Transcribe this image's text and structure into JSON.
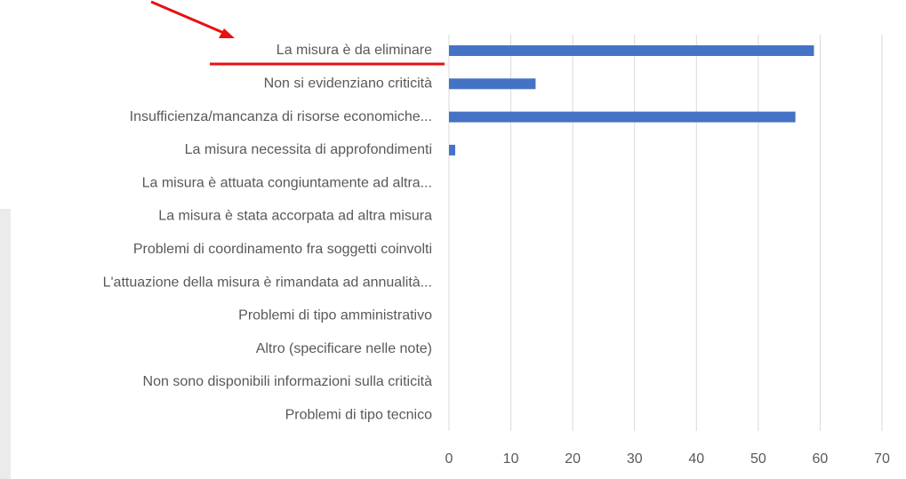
{
  "chart_data": {
    "type": "bar",
    "orientation": "horizontal",
    "categories": [
      "La misura è da eliminare",
      "Non si evidenziano criticità",
      "Insufficienza/mancanza di risorse economiche...",
      "La misura necessita di approfondimenti",
      "La misura è attuata congiuntamente ad altra...",
      "La misura è stata accorpata ad altra misura",
      "Problemi di coordinamento fra soggetti coinvolti",
      "L'attuazione della misura è rimandata ad annualità...",
      "Problemi di tipo amministrativo",
      "Altro (specificare nelle note)",
      "Non sono disponibili informazioni sulla criticità",
      "Problemi di tipo tecnico"
    ],
    "values": [
      59,
      14,
      56,
      1,
      0,
      0,
      0,
      0,
      0,
      0,
      0,
      0
    ],
    "color": "#4472c4",
    "xlim": [
      0,
      70
    ],
    "xticks": [
      0,
      10,
      20,
      30,
      40,
      50,
      60,
      70
    ],
    "grid": true
  }
}
